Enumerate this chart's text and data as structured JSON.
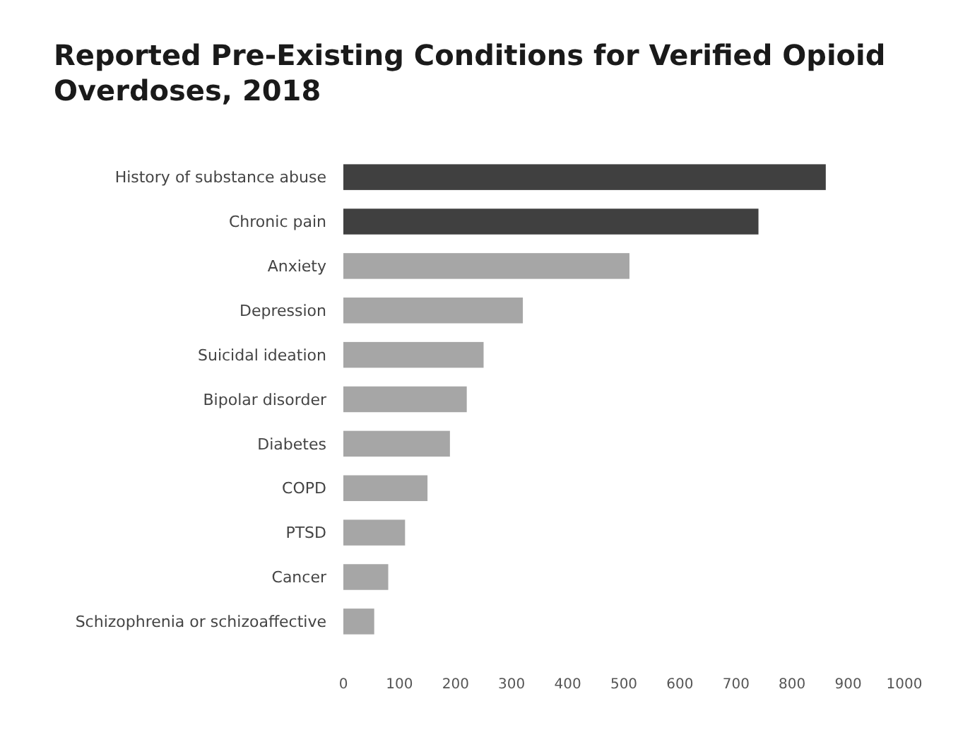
{
  "chart_data": {
    "type": "bar",
    "orientation": "horizontal",
    "title": "Reported Pre-Existing Conditions for Verified Opioid Overdoses, 2018",
    "categories": [
      "History of substance abuse",
      "Chronic pain",
      "Anxiety",
      "Depression",
      "Suicidal ideation",
      "Bipolar disorder",
      "Diabetes",
      "COPD",
      "PTSD",
      "Cancer",
      "Schizophrenia or schizoaffective"
    ],
    "values": [
      860,
      740,
      510,
      320,
      250,
      220,
      190,
      150,
      110,
      80,
      55
    ],
    "colors": [
      "#404040",
      "#404040",
      "#a6a6a6",
      "#a6a6a6",
      "#a6a6a6",
      "#a6a6a6",
      "#a6a6a6",
      "#a6a6a6",
      "#a6a6a6",
      "#a6a6a6",
      "#a6a6a6"
    ],
    "xlim": [
      0,
      1000
    ],
    "xticks": [
      0,
      100,
      200,
      300,
      400,
      500,
      600,
      700,
      800,
      900,
      1000
    ],
    "grid": false
  }
}
